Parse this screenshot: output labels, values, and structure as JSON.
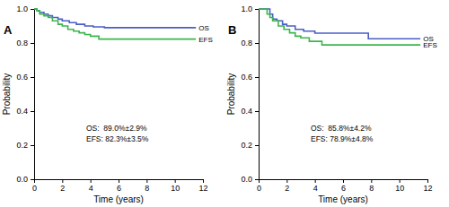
{
  "chart_data": [
    {
      "type": "line",
      "title": "A",
      "xlabel": "Time (years)",
      "ylabel": "Probability",
      "xlim": [
        0,
        12
      ],
      "xticks": [
        0,
        2,
        4,
        6,
        8,
        10,
        12
      ],
      "ylim": [
        0,
        1
      ],
      "yticks": [
        {
          "value": 0,
          "label": "0.0"
        },
        {
          "value": 0.2,
          "label": "0.2"
        },
        {
          "value": 0.4,
          "label": "0.4"
        },
        {
          "value": 0.6,
          "label": "0.6"
        },
        {
          "value": 0.8,
          "label": "0.8"
        },
        {
          "value": 1,
          "label": "1.0"
        }
      ],
      "annotations": [
        "OS:  89.0%±2.9%",
        "EFS: 82.3%±3.5%"
      ],
      "line_style": "step",
      "series": [
        {
          "name": "OS",
          "color": "#4a5fc7",
          "x": [
            0,
            0.2,
            0.4,
            0.7,
            1.0,
            1.3,
            1.7,
            2.0,
            2.5,
            3.0,
            3.6,
            4.2,
            5.0,
            11.5
          ],
          "values": [
            1.0,
            0.99,
            0.98,
            0.97,
            0.96,
            0.95,
            0.94,
            0.93,
            0.92,
            0.91,
            0.9,
            0.895,
            0.89,
            0.89
          ]
        },
        {
          "name": "EFS",
          "color": "#3cb54a",
          "x": [
            0,
            0.2,
            0.4,
            0.7,
            1.0,
            1.3,
            1.7,
            2.0,
            2.4,
            2.8,
            3.2,
            3.6,
            4.0,
            4.6,
            11.5
          ],
          "values": [
            1.0,
            0.99,
            0.97,
            0.96,
            0.95,
            0.93,
            0.91,
            0.9,
            0.88,
            0.87,
            0.86,
            0.85,
            0.84,
            0.823,
            0.823
          ]
        }
      ]
    },
    {
      "type": "line",
      "title": "B",
      "xlabel": "Time (years)",
      "ylabel": "Probability",
      "xlim": [
        0,
        12
      ],
      "xticks": [
        0,
        2,
        4,
        6,
        8,
        10,
        12
      ],
      "ylim": [
        0,
        1
      ],
      "yticks": [
        {
          "value": 0,
          "label": "0.0"
        },
        {
          "value": 0.2,
          "label": "0.2"
        },
        {
          "value": 0.4,
          "label": "0.4"
        },
        {
          "value": 0.6,
          "label": "0.6"
        },
        {
          "value": 0.8,
          "label": "0.8"
        },
        {
          "value": 1,
          "label": "1.0"
        }
      ],
      "annotations": [
        "OS:  85.8%±4.2%",
        "EFS: 78.9%±4.8%"
      ],
      "line_style": "step",
      "series": [
        {
          "name": "OS",
          "color": "#4a5fc7",
          "x": [
            0,
            0.8,
            1.0,
            1.3,
            1.7,
            2.0,
            2.6,
            3.2,
            4.0,
            7.8,
            11.5
          ],
          "values": [
            1.0,
            0.97,
            0.94,
            0.93,
            0.91,
            0.9,
            0.88,
            0.87,
            0.858,
            0.825,
            0.825
          ]
        },
        {
          "name": "EFS",
          "color": "#3cb54a",
          "x": [
            0,
            0.6,
            0.8,
            1.0,
            1.4,
            1.8,
            2.2,
            2.6,
            3.0,
            3.6,
            4.5,
            11.5
          ],
          "values": [
            1.0,
            0.97,
            0.95,
            0.93,
            0.9,
            0.88,
            0.86,
            0.84,
            0.83,
            0.81,
            0.789,
            0.789
          ]
        }
      ]
    }
  ]
}
